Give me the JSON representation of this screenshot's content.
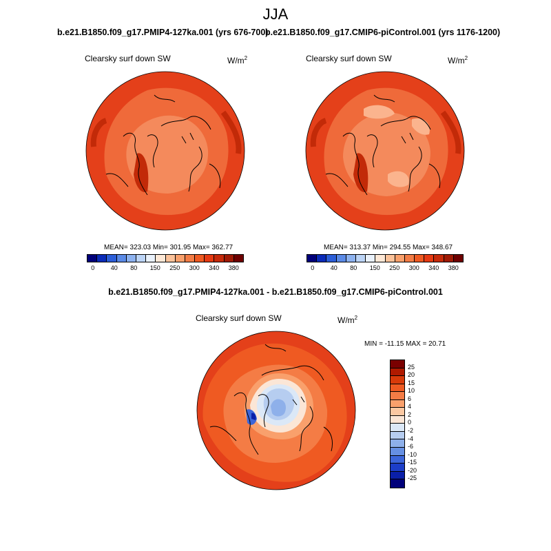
{
  "season": "JJA",
  "panels": [
    {
      "case_title": "b.e21.B1850.f09_g17.PMIP4-127ka.001 (yrs 676-700)",
      "variable": "Clearsky surf down SW",
      "unit_base": "W/m",
      "unit_exp": "2",
      "stats": "MEAN= 323.03  Min= 301.95  Max= 362.77"
    },
    {
      "case_title": "b.e21.B1850.f09_g17.CMIP6-piControl.001 (yrs 1176-1200)",
      "variable": "Clearsky surf down SW",
      "unit_base": "W/m",
      "unit_exp": "2",
      "stats": "MEAN= 313.37  Min= 294.55  Max= 348.67"
    }
  ],
  "abs_colorbar": {
    "colors": [
      "#00007a",
      "#0a2bb8",
      "#2c5ed8",
      "#5b8ae6",
      "#8db2ef",
      "#bcd4f6",
      "#e9f1fb",
      "#fde8d6",
      "#fbc29a",
      "#f9a06c",
      "#f37c45",
      "#ef5a22",
      "#e63a12",
      "#c62a0a",
      "#a01a05",
      "#6e0000"
    ],
    "tick_labels": [
      "0",
      "40",
      "80",
      "150",
      "250",
      "300",
      "340",
      "380"
    ]
  },
  "diff": {
    "title": "b.e21.B1850.f09_g17.PMIP4-127ka.001 - b.e21.B1850.f09_g17.CMIP6-piControl.001",
    "variable": "Clearsky surf down SW",
    "unit_base": "W/m",
    "unit_exp": "2",
    "minmax": "MIN = -11.15 MAX =  20.71",
    "colors": [
      "#7a0000",
      "#b01a00",
      "#d83a0a",
      "#ee5a22",
      "#f47c45",
      "#f9a06c",
      "#fbc8a2",
      "#fbe6d6",
      "#dbe8f7",
      "#b6cdf0",
      "#8eb0ea",
      "#6690e3",
      "#3c66da",
      "#1c3ec8",
      "#0a1fa8",
      "#00007a"
    ],
    "labels": [
      "25",
      "20",
      "15",
      "10",
      "6",
      "4",
      "2",
      "0",
      "-2",
      "-4",
      "-6",
      "-10",
      "-15",
      "-20",
      "-25"
    ]
  }
}
